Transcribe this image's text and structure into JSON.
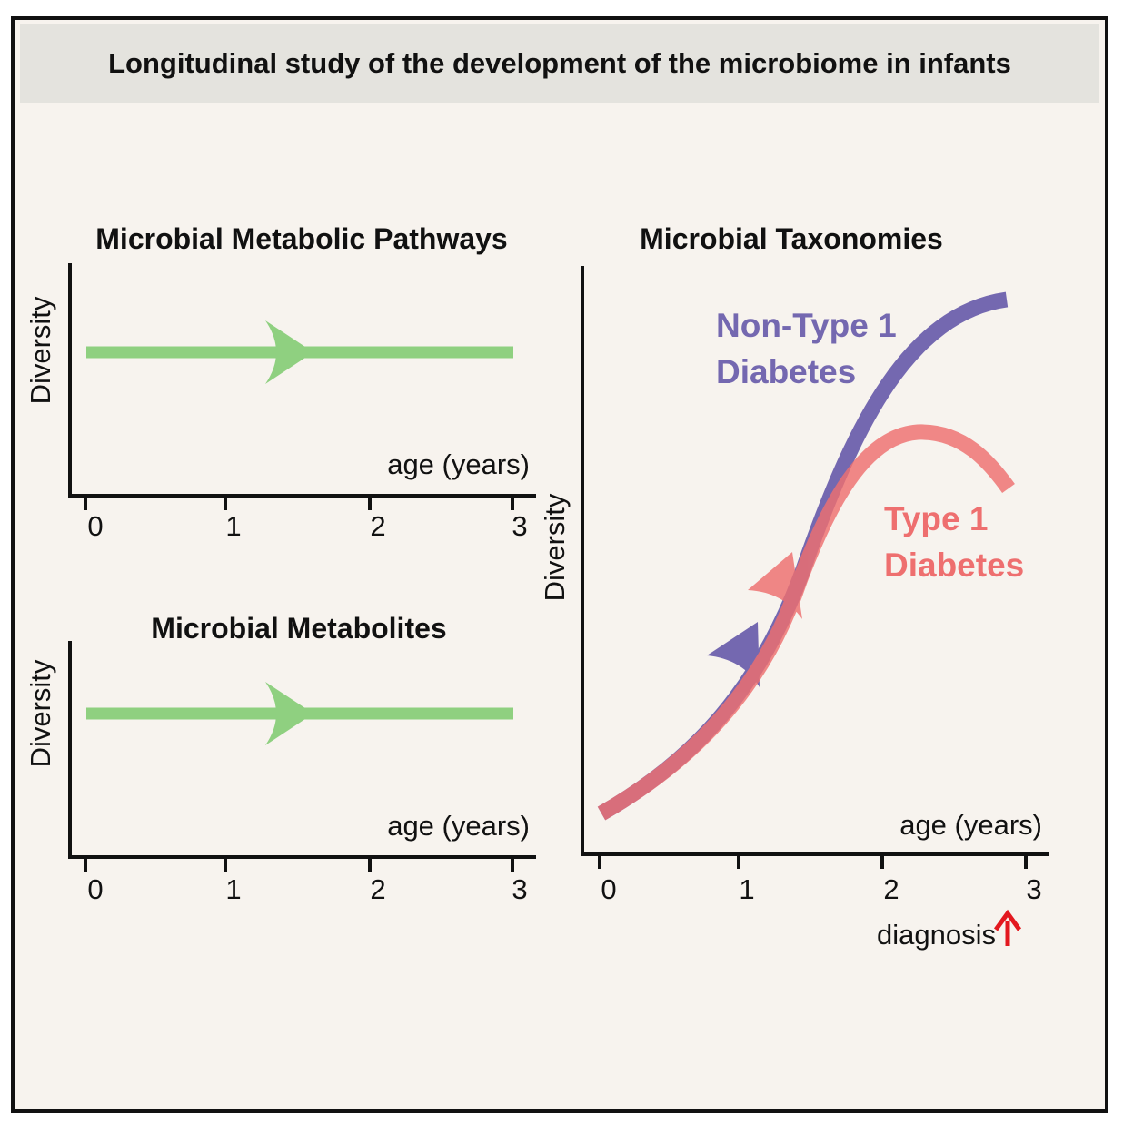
{
  "title": "Longitudinal study of the development of the microbiome in infants",
  "panels": {
    "pathways": {
      "title": "Microbial Metabolic Pathways",
      "ylabel": "Diversity",
      "xlabel": "age (years)",
      "ticks": [
        "0",
        "1",
        "2",
        "3"
      ]
    },
    "metabolites": {
      "title": "Microbial Metabolites",
      "ylabel": "Diversity",
      "xlabel": "age (years)",
      "ticks": [
        "0",
        "1",
        "2",
        "3"
      ]
    },
    "taxonomies": {
      "title": "Microbial Taxonomies",
      "ylabel": "Diversity",
      "xlabel": "age (years)",
      "ticks": [
        "0",
        "1",
        "2",
        "3"
      ],
      "series": [
        {
          "name_line1": "Non-Type 1",
          "name_line2": "Diabetes",
          "color": "#7468b0"
        },
        {
          "name_line1": "Type 1",
          "name_line2": "Diabetes",
          "color": "#ee6f6f"
        }
      ],
      "annotation": "diagnosis"
    }
  },
  "colors": {
    "flat_trend": "#8fd080",
    "non_t1d": "#7468b0",
    "t1d": "#ee6f6f",
    "diagnosis_arrow": "#e3181f",
    "axis": "#111111"
  },
  "icons": {
    "diagnosis": "red-up-arrow-icon"
  }
}
